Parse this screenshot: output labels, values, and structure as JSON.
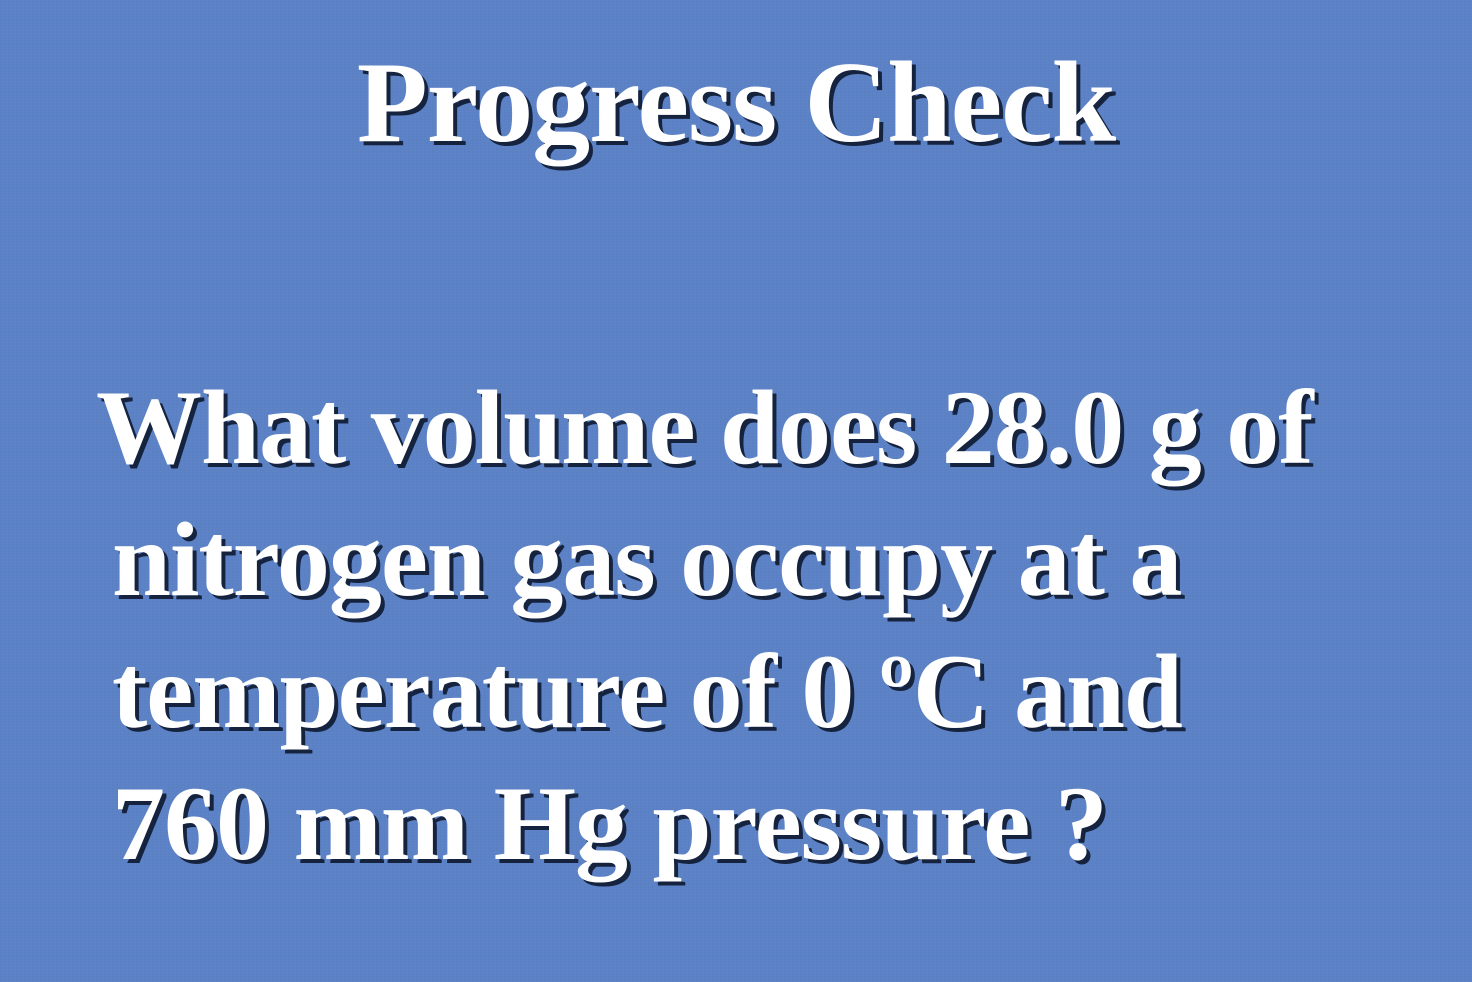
{
  "slide": {
    "title": "Progress Check",
    "question_lines": [
      "What volume does 28.0 g of",
      "nitrogen gas occupy at a",
      "temperature of 0 ºC and",
      "760 mm Hg pressure ?"
    ]
  },
  "colors": {
    "background": "#5b82c6",
    "text": "#ffffff",
    "text_shadow": "#15233f"
  }
}
